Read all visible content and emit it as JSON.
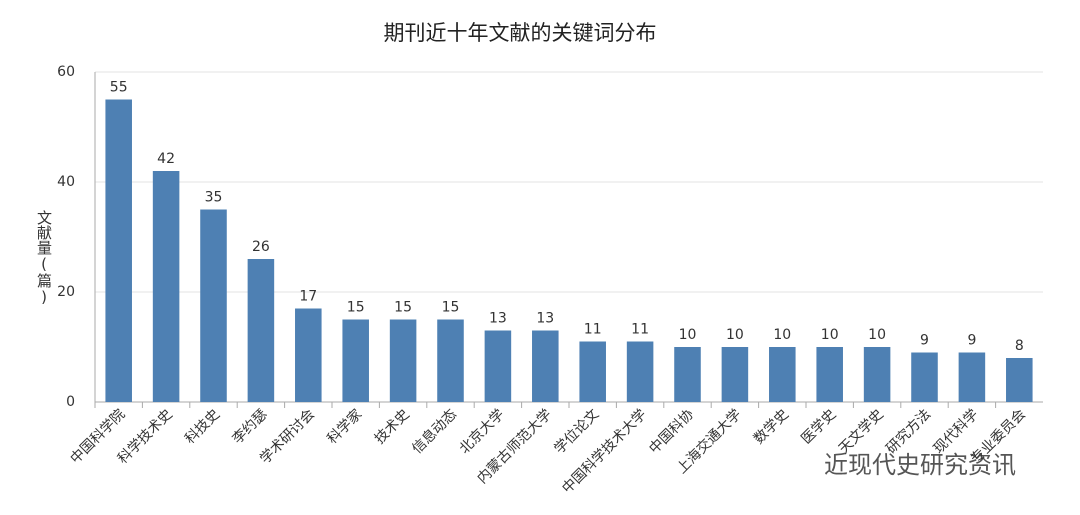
{
  "chart_data": {
    "type": "bar",
    "title": "期刊近十年文献的关键词分布",
    "y_label": "文献量(篇)",
    "categories": [
      "中国科学院",
      "科学技术史",
      "科技史",
      "李约瑟",
      "学术研讨会",
      "科学家",
      "技术史",
      "信息动态",
      "北京大学",
      "内蒙古师范大学",
      "学位论文",
      "中国科学技术大学",
      "中国科协",
      "上海交通大学",
      "数学史",
      "医学史",
      "天文学史",
      "研究方法",
      "现代科学",
      "专业委员会"
    ],
    "values": [
      55,
      42,
      35,
      26,
      17,
      15,
      15,
      15,
      13,
      13,
      11,
      11,
      10,
      10,
      10,
      10,
      10,
      9,
      9,
      8
    ],
    "color": "#4e80b3",
    "ylim": [
      0,
      60
    ],
    "yticks": [
      0,
      20,
      40,
      60
    ],
    "grid": true,
    "watermark": "近现代史研究资讯"
  }
}
